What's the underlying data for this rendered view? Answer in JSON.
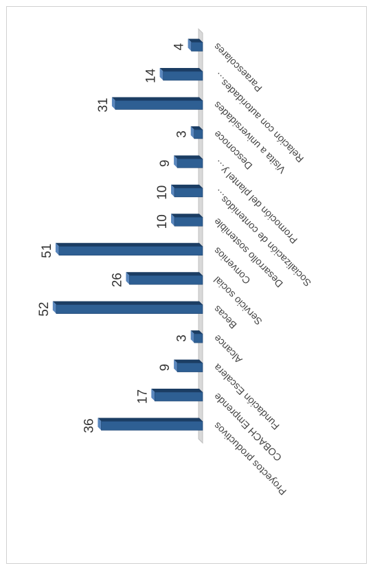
{
  "chart_data": {
    "type": "bar",
    "categories": [
      "Proyectos productivos",
      "COBACH Emprende",
      "Fundación Escalera",
      "Alcance",
      "Becas",
      "Servicio social",
      "Convenios",
      "Desarrollo sostenible",
      "Socialización de contenidos…",
      "Promoción del plantel y…",
      "Desconoce",
      "Visita a universidades",
      "Relación con autoridades…",
      "Paraescolares"
    ],
    "values": [
      36,
      17,
      9,
      3,
      52,
      26,
      51,
      10,
      10,
      9,
      3,
      31,
      14,
      4
    ],
    "color": "#2e5f93",
    "ylim": [
      0,
      60
    ]
  }
}
